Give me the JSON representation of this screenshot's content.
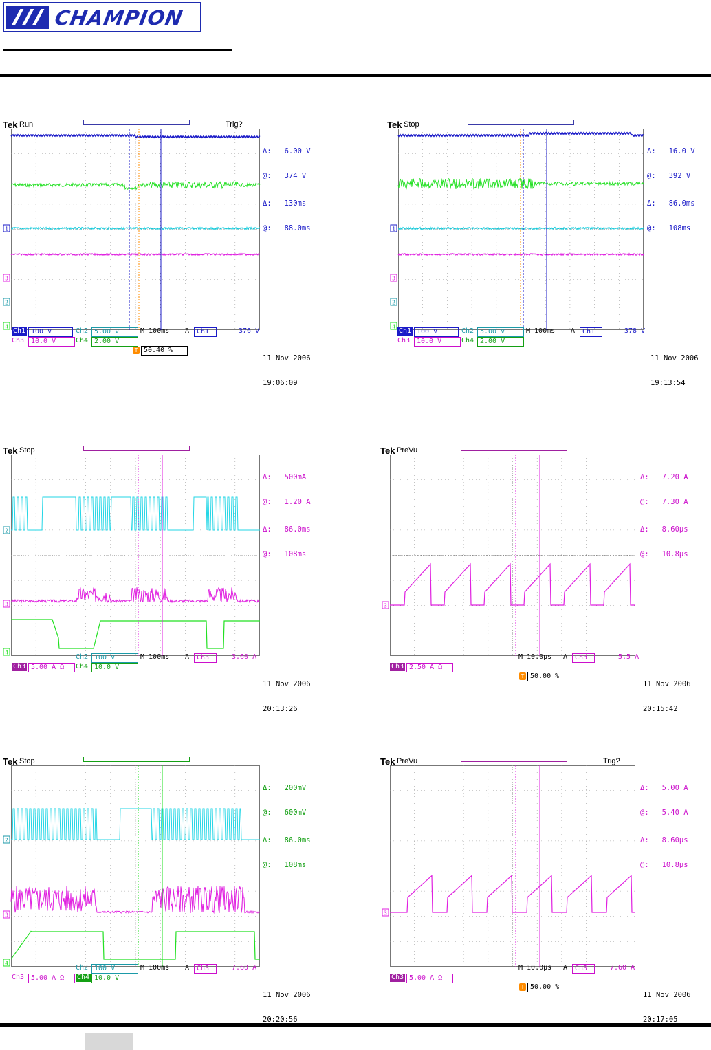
{
  "header": {
    "logo_text": "CHAMPION",
    "footer_tab": ""
  },
  "colors": {
    "ch1": "#1b1bc8",
    "ch2": "#22d6e6",
    "ch3": "#e020e0",
    "ch4": "#22e022",
    "grid": "#9a9a9a",
    "trigger": "#ff8c00"
  },
  "scopes": [
    {
      "tek": "Tek",
      "state": "Run",
      "trig_label": "Trig?",
      "readout": [
        "Δ:   6.00 V",
        "@:   374 V",
        "Δ:   130ms",
        "@:   88.0ms"
      ],
      "readout_color": "#1b1bc8",
      "foot_row1": [
        "Ch1",
        "100 V",
        "Ch2",
        "5.00 V",
        "M 100ms",
        "A",
        "Ch1",
        "376 V"
      ],
      "foot_row2": [
        "Ch3",
        "10.0 V",
        "Ch4",
        "2.00 V"
      ],
      "trigger_pct": "50.40 %",
      "date": "11 Nov 2006",
      "time": "19:06:09",
      "ch_markers": [
        "1",
        "3",
        "2",
        "4"
      ]
    },
    {
      "tek": "Tek",
      "state": "Stop",
      "trig_label": "",
      "readout": [
        "Δ:   16.0 V",
        "@:   392 V",
        "Δ:   86.0ms",
        "@:   108ms"
      ],
      "readout_color": "#1b1bc8",
      "foot_row1": [
        "Ch1",
        "100 V",
        "Ch2",
        "5.00 V",
        "M 100ms",
        "A",
        "Ch1",
        "378 V"
      ],
      "foot_row2": [
        "Ch3",
        "10.0 V",
        "Ch4",
        "2.00 V"
      ],
      "trigger_pct": "",
      "date": "11 Nov 2006",
      "time": "19:13:54",
      "ch_markers": [
        "1",
        "3",
        "2",
        "4"
      ]
    },
    {
      "tek": "Tek",
      "state": "Stop",
      "trig_label": "",
      "readout": [
        "Δ:   500mA",
        "@:   1.20 A",
        "Δ:   86.0ms",
        "@:   108ms"
      ],
      "readout_color": "#cc10cc",
      "foot_row1": [
        "",
        "",
        "Ch2",
        "100 V",
        "M 100ms",
        "A",
        "Ch3",
        "3.60 A"
      ],
      "foot_row2": [
        "Ch3",
        "5.00 A Ω",
        "Ch4",
        "10.0 V"
      ],
      "trigger_pct": "",
      "date": "11 Nov 2006",
      "time": "20:13:26",
      "ch_markers": [
        "2",
        "3",
        "4"
      ]
    },
    {
      "tek": "Tek",
      "state": "PreVu",
      "trig_label": "",
      "readout": [
        "Δ:   7.20 A",
        "@:   7.30 A",
        "Δ:   8.60µs",
        "@:   10.8µs"
      ],
      "readout_color": "#cc10cc",
      "foot_row1": [
        "",
        "",
        "",
        "",
        "M 10.0µs",
        "A",
        "Ch3",
        "5.5 A"
      ],
      "foot_row2": [
        "Ch3",
        "2.50 A Ω",
        "",
        ""
      ],
      "trigger_pct": "50.00 %",
      "date": "11 Nov 2006",
      "time": "20:15:42",
      "ch_markers": [
        "3"
      ]
    },
    {
      "tek": "Tek",
      "state": "Stop",
      "trig_label": "",
      "readout": [
        "Δ:   200mV",
        "@:   600mV",
        "Δ:   86.0ms",
        "@:   108ms"
      ],
      "readout_color": "#14a014",
      "foot_row1": [
        "",
        "",
        "Ch2",
        "100 V",
        "M 100ms",
        "A",
        "Ch3",
        "7.60 A"
      ],
      "foot_row2": [
        "Ch3",
        "5.00 A Ω",
        "Ch4",
        "10.0 V"
      ],
      "trigger_pct": "",
      "date": "11 Nov 2006",
      "time": "20:20:56",
      "ch_markers": [
        "2",
        "3",
        "4"
      ]
    },
    {
      "tek": "Tek",
      "state": "PreVu",
      "trig_label": "Trig?",
      "readout": [
        "Δ:   5.00 A",
        "@:   5.40 A",
        "Δ:   8.60µs",
        "@:   10.8µs"
      ],
      "readout_color": "#cc10cc",
      "foot_row1": [
        "",
        "",
        "",
        "",
        "M 10.0µs",
        "A",
        "Ch3",
        "7.60 A"
      ],
      "foot_row2": [
        "Ch3",
        "5.00 A Ω",
        "",
        ""
      ],
      "trigger_pct": "50.00 %",
      "date": "11 Nov 2006",
      "time": "20:17:05",
      "ch_markers": [
        "3"
      ]
    }
  ]
}
